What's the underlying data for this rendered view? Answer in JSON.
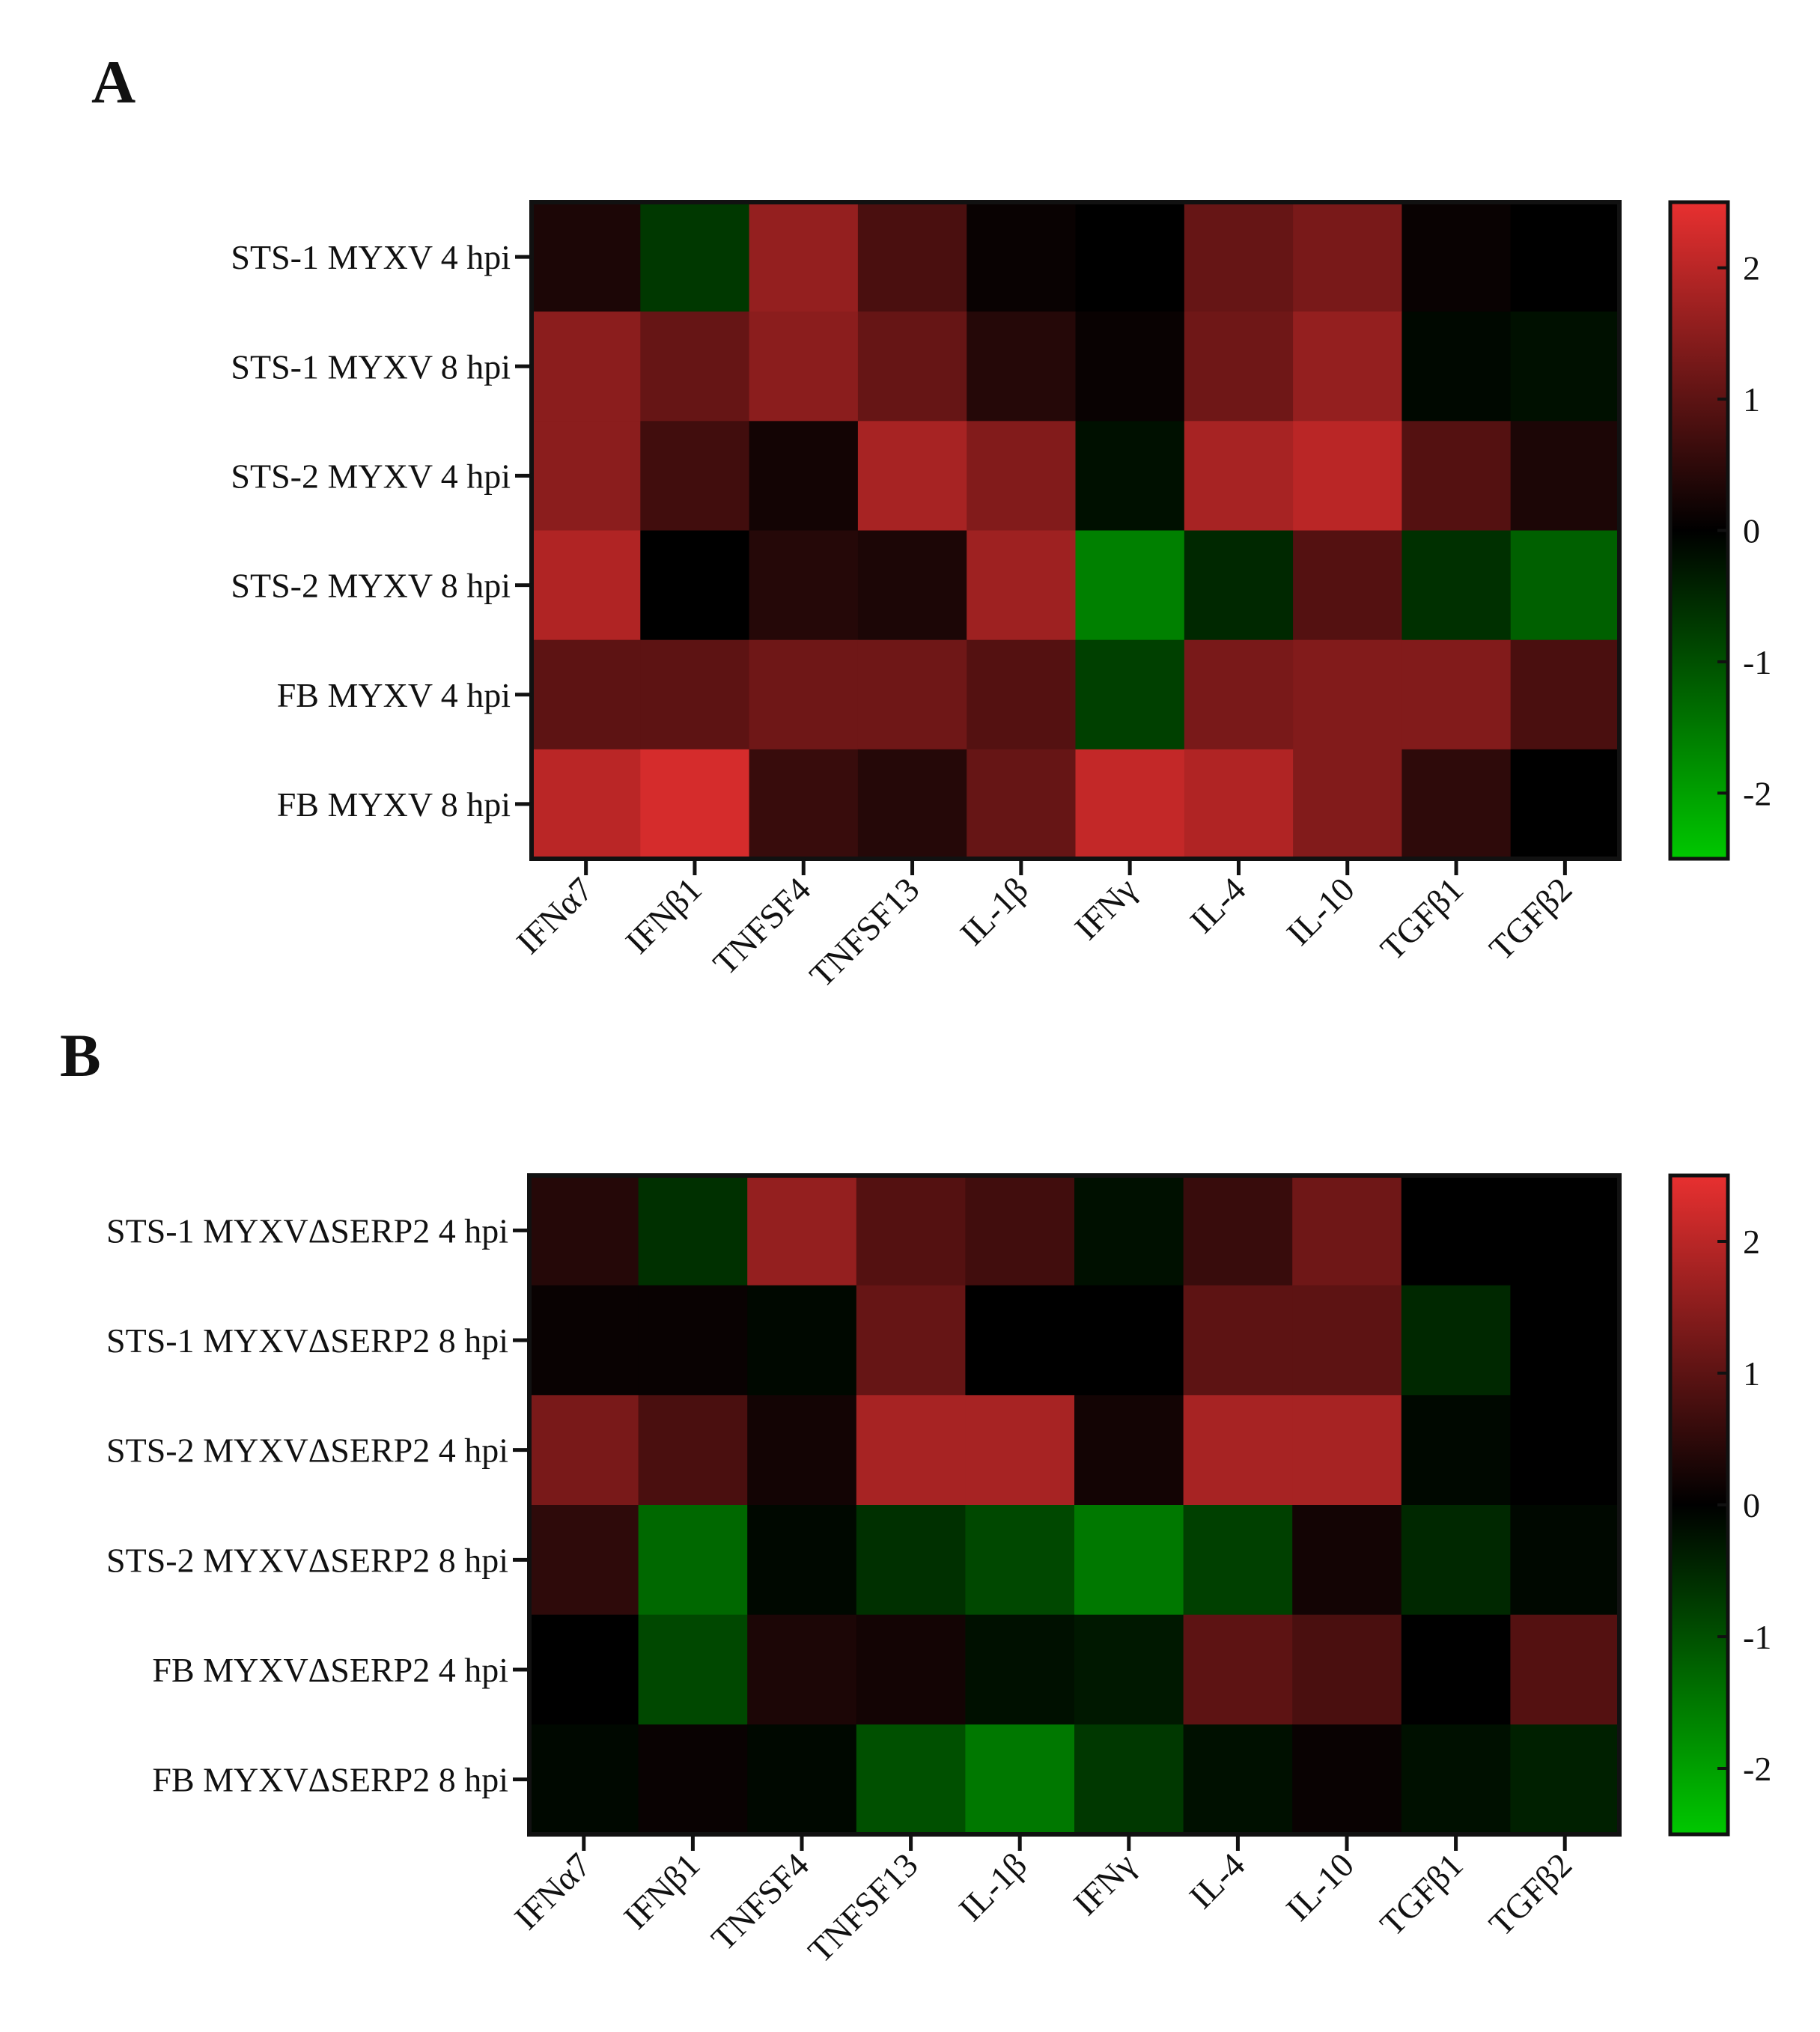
{
  "panels": [
    {
      "label": "A"
    },
    {
      "label": "B"
    }
  ],
  "colors": {
    "low": "#00c800",
    "mid": "#000000",
    "high": "#e83030",
    "frame": "#111111",
    "background": "#ffffff"
  },
  "chart_data": [
    {
      "type": "heatmap",
      "panel": "A",
      "columns": [
        "IFNα7",
        "IFNβ1",
        "TNFSF4",
        "TNFSF13",
        "IL-1β",
        "IFNγ",
        "IL-4",
        "IL-10",
        "TGFβ1",
        "TGFβ2"
      ],
      "rows": [
        "STS-1 MYXV 4 hpi",
        "STS-1 MYXV 8 hpi",
        "STS-2 MYXV 4 hpi",
        "STS-2 MYXV 8 hpi",
        "FB MYXV 4 hpi",
        "FB MYXV 8 hpi"
      ],
      "values": [
        [
          0.3,
          -0.7,
          1.6,
          0.8,
          0.1,
          0.0,
          1.1,
          1.3,
          0.1,
          0.0
        ],
        [
          1.5,
          1.1,
          1.5,
          1.1,
          0.4,
          0.1,
          1.2,
          1.6,
          -0.1,
          -0.2
        ],
        [
          1.5,
          0.7,
          0.2,
          1.8,
          1.4,
          -0.2,
          1.8,
          2.0,
          0.9,
          0.3
        ],
        [
          1.9,
          0.0,
          0.4,
          0.3,
          1.7,
          -1.6,
          -0.5,
          0.9,
          -0.6,
          -1.2
        ],
        [
          1.0,
          1.0,
          1.2,
          1.2,
          0.9,
          -0.8,
          1.3,
          1.4,
          1.4,
          0.8
        ],
        [
          2.0,
          2.3,
          0.6,
          0.4,
          1.1,
          2.1,
          1.9,
          1.4,
          0.5,
          0.0
        ]
      ],
      "colorbar": {
        "range": [
          -2.5,
          2.5
        ],
        "ticks": [
          2,
          1,
          0,
          -1,
          -2
        ]
      }
    },
    {
      "type": "heatmap",
      "panel": "B",
      "columns": [
        "IFNα7",
        "IFNβ1",
        "TNFSF4",
        "TNFSF13",
        "IL-1β",
        "IFNγ",
        "IL-4",
        "IL-10",
        "TGFβ1",
        "TGFβ2"
      ],
      "rows": [
        "STS-1 MYXVΔSERP2 4 hpi",
        "STS-1 MYXVΔSERP2 8 hpi",
        "STS-2 MYXVΔSERP2 4 hpi",
        "STS-2 MYXVΔSERP2 8 hpi",
        "FB MYXVΔSERP2 4 hpi",
        "FB MYXVΔSERP2 8 hpi"
      ],
      "values": [
        [
          0.4,
          -0.6,
          1.6,
          0.9,
          0.7,
          -0.2,
          0.6,
          1.2,
          0.0,
          0.0
        ],
        [
          0.1,
          0.1,
          -0.1,
          1.1,
          0.0,
          0.0,
          1.0,
          1.0,
          -0.5,
          0.0
        ],
        [
          1.3,
          0.8,
          0.2,
          1.8,
          1.8,
          0.2,
          1.8,
          1.8,
          -0.1,
          0.0
        ],
        [
          0.5,
          -1.3,
          -0.1,
          -0.6,
          -0.9,
          -1.5,
          -0.8,
          0.2,
          -0.5,
          -0.1
        ],
        [
          0.0,
          -0.9,
          0.3,
          0.2,
          -0.2,
          -0.3,
          1.0,
          0.8,
          0.0,
          0.9
        ],
        [
          -0.1,
          0.1,
          -0.1,
          -1.0,
          -1.5,
          -0.7,
          -0.2,
          0.1,
          -0.2,
          -0.4
        ]
      ],
      "colorbar": {
        "range": [
          -2.5,
          2.5
        ],
        "ticks": [
          2,
          1,
          0,
          -1,
          -2
        ]
      }
    }
  ]
}
